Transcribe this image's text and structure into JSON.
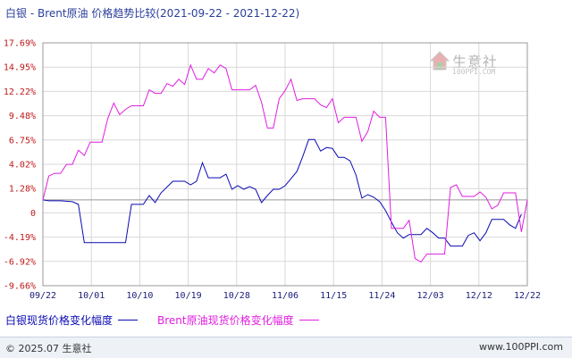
{
  "header": {
    "title": "白银 - Brent原油 价格趋势比较(2021-09-22 - 2021-12-22)"
  },
  "watermark": {
    "text": "生意社",
    "sub": "100PPI.COM"
  },
  "footer": {
    "left": "© 2025.07 生意社",
    "right": "www.100PPI.com"
  },
  "colors": {
    "series1": "#0a0ab4",
    "series2": "#e01ee0",
    "ytick": "#c01818",
    "grid": "#d8d8d8"
  },
  "chart_data": {
    "type": "line",
    "x_ticks": [
      "09/22",
      "10/01",
      "10/10",
      "10/19",
      "10/28",
      "11/06",
      "11/15",
      "11/24",
      "12/03",
      "12/12",
      "12/22"
    ],
    "y_ticks": [
      "17.69%",
      "14.95%",
      "12.22%",
      "9.48%",
      "6.75%",
      "4.02%",
      "1.28%",
      "0",
      "-4.19%",
      "-6.92%",
      "-9.66%"
    ],
    "ylim": [
      -9.66,
      17.69
    ],
    "grid": true,
    "legend_position": "bottom-left",
    "series": [
      {
        "name": "白银现货价格变化幅度",
        "color": "#0a0ab4",
        "points": [
          [
            0,
            0
          ],
          [
            1,
            -0.1
          ],
          [
            3,
            -0.1
          ],
          [
            5,
            -0.2
          ],
          [
            6,
            -0.5
          ],
          [
            7,
            -4.8
          ],
          [
            9,
            -4.8
          ],
          [
            11,
            -4.8
          ],
          [
            13,
            -4.8
          ],
          [
            14,
            -4.8
          ],
          [
            15,
            -0.5
          ],
          [
            17,
            -0.5
          ],
          [
            18,
            0.5
          ],
          [
            19,
            -0.3
          ],
          [
            20,
            0.8
          ],
          [
            22,
            2.1
          ],
          [
            24,
            2.1
          ],
          [
            25,
            1.7
          ],
          [
            26,
            2.1
          ],
          [
            27,
            4.2
          ],
          [
            28,
            2.5
          ],
          [
            30,
            2.5
          ],
          [
            31,
            2.9
          ],
          [
            32,
            1.2
          ],
          [
            33,
            1.6
          ],
          [
            34,
            1.2
          ],
          [
            35,
            1.5
          ],
          [
            36,
            1.2
          ],
          [
            37,
            -0.3
          ],
          [
            38,
            0.5
          ],
          [
            39,
            1.2
          ],
          [
            40,
            1.2
          ],
          [
            41,
            1.6
          ],
          [
            42,
            2.4
          ],
          [
            43,
            3.2
          ],
          [
            44,
            4.9
          ],
          [
            45,
            6.8
          ],
          [
            46,
            6.8
          ],
          [
            47,
            5.5
          ],
          [
            48,
            5.9
          ],
          [
            49,
            5.8
          ],
          [
            50,
            4.8
          ],
          [
            51,
            4.8
          ],
          [
            52,
            4.4
          ],
          [
            53,
            2.8
          ],
          [
            54,
            0.2
          ],
          [
            55,
            0.6
          ],
          [
            56,
            0.3
          ],
          [
            57,
            -0.2
          ],
          [
            58,
            -1.2
          ],
          [
            59,
            -2.5
          ],
          [
            60,
            -3.7
          ],
          [
            61,
            -4.3
          ],
          [
            62,
            -3.9
          ],
          [
            63,
            -3.9
          ],
          [
            64,
            -3.9
          ],
          [
            65,
            -3.2
          ],
          [
            66,
            -3.7
          ],
          [
            67,
            -4.3
          ],
          [
            68,
            -4.3
          ],
          [
            69,
            -5.2
          ],
          [
            70,
            -5.2
          ],
          [
            71,
            -5.2
          ],
          [
            72,
            -4.0
          ],
          [
            73,
            -3.7
          ],
          [
            74,
            -4.6
          ],
          [
            75,
            -3.7
          ],
          [
            76,
            -2.2
          ],
          [
            77,
            -2.2
          ],
          [
            78,
            -2.2
          ],
          [
            79,
            -2.8
          ],
          [
            80,
            -3.2
          ],
          [
            81,
            -1.6
          ]
        ]
      },
      {
        "name": "Brent原油现货价格变化幅度",
        "color": "#e01ee0",
        "points": [
          [
            0,
            0
          ],
          [
            1,
            2.7
          ],
          [
            2,
            3.0
          ],
          [
            3,
            3.0
          ],
          [
            4,
            4.0
          ],
          [
            5,
            4.0
          ],
          [
            6,
            5.6
          ],
          [
            7,
            5.0
          ],
          [
            8,
            6.5
          ],
          [
            9,
            6.5
          ],
          [
            10,
            6.5
          ],
          [
            11,
            9.2
          ],
          [
            12,
            10.9
          ],
          [
            13,
            9.6
          ],
          [
            14,
            10.2
          ],
          [
            15,
            10.6
          ],
          [
            16,
            10.6
          ],
          [
            17,
            10.6
          ],
          [
            18,
            12.4
          ],
          [
            19,
            12.0
          ],
          [
            20,
            12.0
          ],
          [
            21,
            13.1
          ],
          [
            22,
            12.8
          ],
          [
            23,
            13.6
          ],
          [
            24,
            13.0
          ],
          [
            25,
            15.2
          ],
          [
            26,
            13.6
          ],
          [
            27,
            13.6
          ],
          [
            28,
            14.8
          ],
          [
            29,
            14.3
          ],
          [
            30,
            15.2
          ],
          [
            31,
            14.8
          ],
          [
            32,
            12.4
          ],
          [
            33,
            12.4
          ],
          [
            34,
            12.4
          ],
          [
            35,
            12.4
          ],
          [
            36,
            12.9
          ],
          [
            37,
            11.0
          ],
          [
            38,
            8.1
          ],
          [
            39,
            8.1
          ],
          [
            40,
            11.4
          ],
          [
            41,
            12.3
          ],
          [
            42,
            13.6
          ],
          [
            43,
            11.2
          ],
          [
            44,
            11.4
          ],
          [
            45,
            11.4
          ],
          [
            46,
            11.4
          ],
          [
            47,
            10.7
          ],
          [
            48,
            10.4
          ],
          [
            49,
            11.4
          ],
          [
            50,
            8.7
          ],
          [
            51,
            9.3
          ],
          [
            52,
            9.3
          ],
          [
            53,
            9.3
          ],
          [
            54,
            6.6
          ],
          [
            55,
            7.7
          ],
          [
            56,
            10.0
          ],
          [
            57,
            9.3
          ],
          [
            58,
            9.3
          ],
          [
            59,
            -3.2
          ],
          [
            60,
            -3.2
          ],
          [
            61,
            -3.2
          ],
          [
            62,
            -2.3
          ],
          [
            63,
            -6.6
          ],
          [
            64,
            -7.0
          ],
          [
            65,
            -6.1
          ],
          [
            66,
            -6.1
          ],
          [
            67,
            -6.1
          ],
          [
            68,
            -6.1
          ],
          [
            69,
            1.4
          ],
          [
            70,
            1.7
          ],
          [
            71,
            0.4
          ],
          [
            72,
            0.4
          ],
          [
            73,
            0.4
          ],
          [
            74,
            0.9
          ],
          [
            75,
            0.3
          ],
          [
            76,
            -1.0
          ],
          [
            77,
            -0.6
          ],
          [
            78,
            0.8
          ],
          [
            79,
            0.8
          ],
          [
            80,
            0.8
          ],
          [
            81,
            -3.6
          ],
          [
            82,
            0.0
          ]
        ]
      }
    ]
  }
}
